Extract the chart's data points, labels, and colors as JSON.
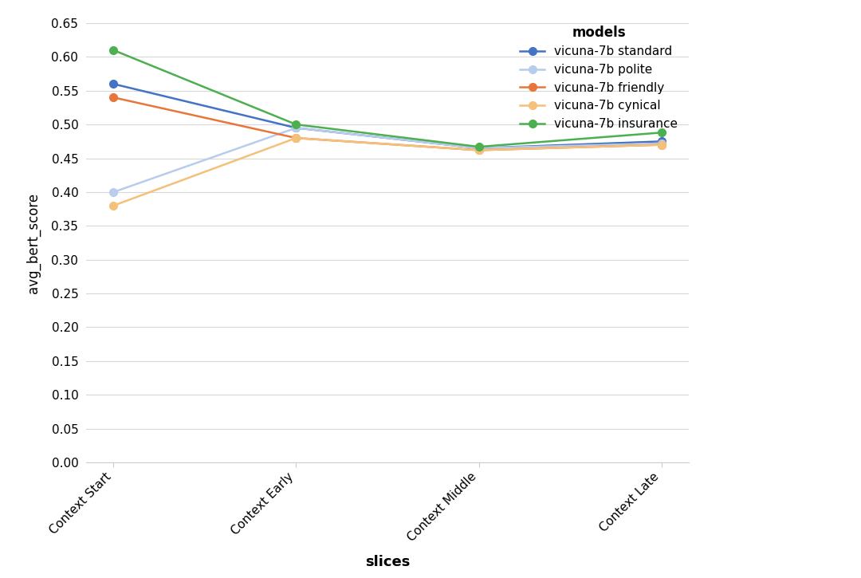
{
  "slices": [
    "Context Start",
    "Context Early",
    "Context Middle",
    "Context Late"
  ],
  "series": [
    {
      "label": "vicuna-7b standard",
      "color": "#4472C4",
      "values": [
        0.56,
        0.495,
        0.465,
        0.475
      ]
    },
    {
      "label": "vicuna-7b polite",
      "color": "#B8CCEC",
      "values": [
        0.4,
        0.495,
        0.465,
        0.472
      ]
    },
    {
      "label": "vicuna-7b friendly",
      "color": "#E8763A",
      "values": [
        0.54,
        0.48,
        0.462,
        0.47
      ]
    },
    {
      "label": "vicuna-7b cynical",
      "color": "#F5C07A",
      "values": [
        0.38,
        0.48,
        0.462,
        0.47
      ]
    },
    {
      "label": "vicuna-7b insurance",
      "color": "#4CAF50",
      "values": [
        0.61,
        0.5,
        0.467,
        0.488
      ]
    }
  ],
  "xlabel": "slices",
  "ylabel": "avg_bert_score",
  "legend_title": "models",
  "ylim": [
    0.0,
    0.65
  ],
  "yticks": [
    0.0,
    0.05,
    0.1,
    0.15,
    0.2,
    0.25,
    0.3,
    0.35,
    0.4,
    0.45,
    0.5,
    0.55,
    0.6,
    0.65
  ],
  "background_color": "#ffffff",
  "grid_color": "#d8d8d8",
  "marker": "o",
  "marker_size": 7,
  "linewidth": 1.8,
  "tick_rotation": 45,
  "figsize": [
    10.8,
    7.25
  ],
  "dpi": 100
}
